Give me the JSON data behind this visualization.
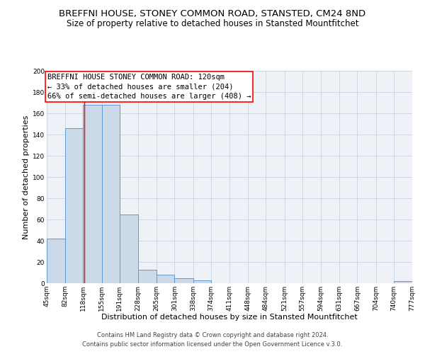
{
  "title": "BREFFNI HOUSE, STONEY COMMON ROAD, STANSTED, CM24 8ND",
  "subtitle": "Size of property relative to detached houses in Stansted Mountfitchet",
  "xlabel": "Distribution of detached houses by size in Stansted Mountfitchet",
  "ylabel": "Number of detached properties",
  "bar_edges": [
    45,
    82,
    118,
    155,
    191,
    228,
    265,
    301,
    338,
    374,
    411,
    448,
    484,
    521,
    557,
    594,
    631,
    667,
    704,
    740,
    777
  ],
  "bar_heights": [
    42,
    146,
    168,
    168,
    65,
    13,
    8,
    5,
    3,
    0,
    0,
    0,
    0,
    0,
    0,
    0,
    0,
    0,
    0,
    2
  ],
  "bar_color": "#ccd9e8",
  "bar_edge_color": "#5b9bd5",
  "reference_line_x": 120,
  "ylim": [
    0,
    200
  ],
  "yticks": [
    0,
    20,
    40,
    60,
    80,
    100,
    120,
    140,
    160,
    180,
    200
  ],
  "xtick_labels": [
    "45sqm",
    "82sqm",
    "118sqm",
    "155sqm",
    "191sqm",
    "228sqm",
    "265sqm",
    "301sqm",
    "338sqm",
    "374sqm",
    "411sqm",
    "448sqm",
    "484sqm",
    "521sqm",
    "557sqm",
    "594sqm",
    "631sqm",
    "667sqm",
    "704sqm",
    "740sqm",
    "777sqm"
  ],
  "annotation_title": "BREFFNI HOUSE STONEY COMMON ROAD: 120sqm",
  "annotation_line1": "← 33% of detached houses are smaller (204)",
  "annotation_line2": "66% of semi-detached houses are larger (408) →",
  "footnote1": "Contains HM Land Registry data © Crown copyright and database right 2024.",
  "footnote2": "Contains public sector information licensed under the Open Government Licence v.3.0.",
  "background_color": "#ffffff",
  "plot_background_color": "#eef2f7",
  "grid_color": "#c8d4de",
  "title_fontsize": 9.5,
  "subtitle_fontsize": 8.5,
  "axis_label_fontsize": 8,
  "tick_fontsize": 6.5,
  "annotation_fontsize": 7.5,
  "footnote_fontsize": 6
}
